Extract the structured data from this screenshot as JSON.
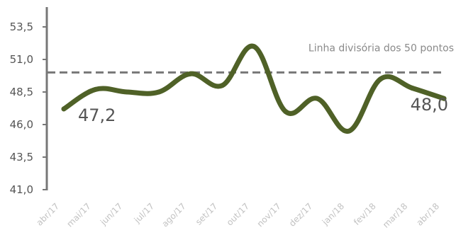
{
  "chart_data": {
    "type": "line",
    "categories": [
      "abr/17",
      "mai/17",
      "jun/17",
      "jul/17",
      "ago/17",
      "set/17",
      "out/17",
      "nov/17",
      "dez/17",
      "jan/18",
      "fev/18",
      "mar/18",
      "abr/18"
    ],
    "series": [
      {
        "values": [
          47.2,
          48.7,
          48.5,
          48.5,
          49.9,
          49.0,
          52.0,
          47.0,
          48.0,
          45.5,
          49.5,
          48.8,
          48.0
        ]
      }
    ],
    "ylim": [
      41.0,
      53.5
    ],
    "yticks": [
      "41,0",
      "43,5",
      "46,0",
      "48,5",
      "51,0",
      "53,5"
    ],
    "reference_line": {
      "value": 50,
      "label": "Linha divisória dos 50 pontos"
    },
    "data_labels": [
      {
        "index": 0,
        "text": "47,2"
      },
      {
        "index": 12,
        "text": "48,0"
      }
    ],
    "colors": {
      "line": "#4f6127",
      "reference": "#777777",
      "axis": "#777777"
    },
    "grid": false,
    "legend": "none"
  }
}
